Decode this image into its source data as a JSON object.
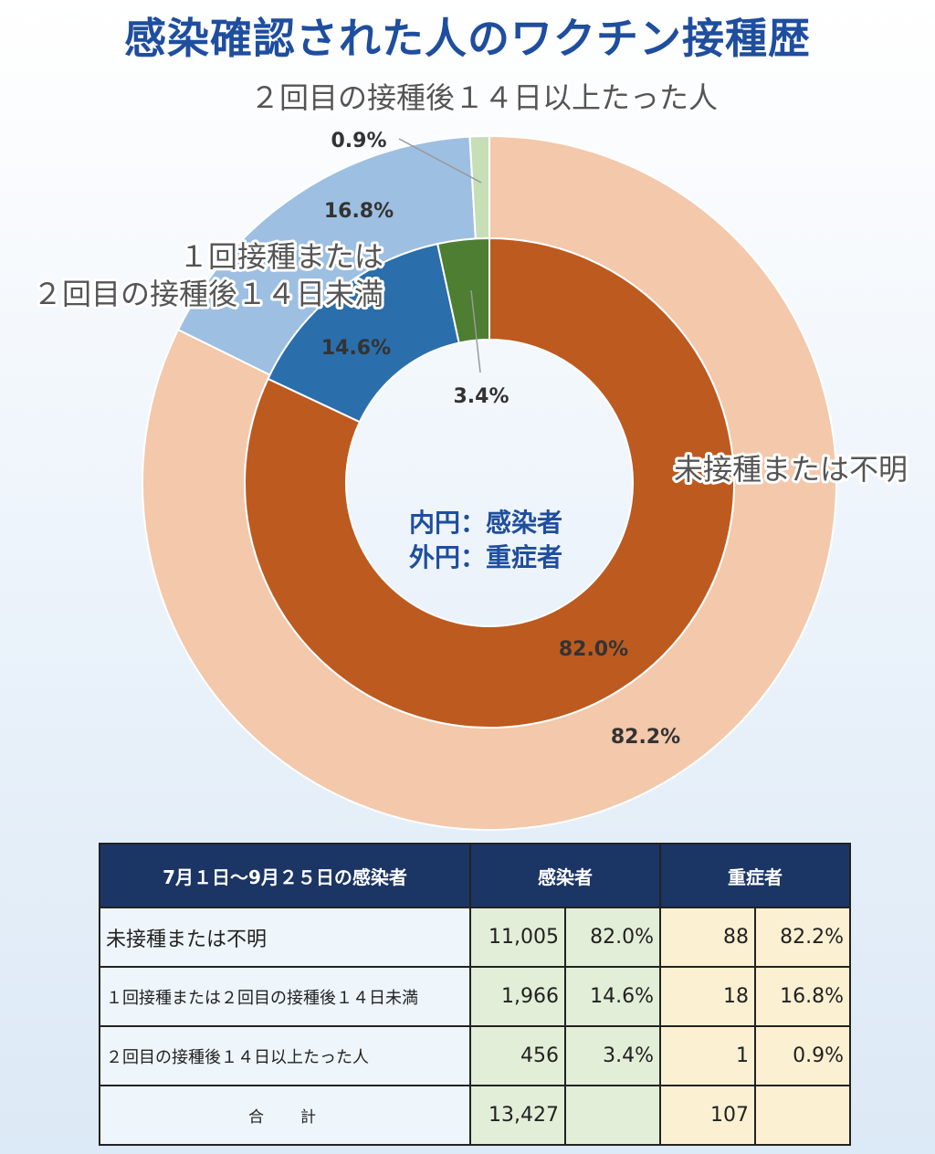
{
  "title": "感染確認された人のワクチン接種歴",
  "chart_data": {
    "type": "donut",
    "title": "感染確認された人のワクチン接種歴",
    "center_labels": [
      "内円：感染者",
      "外円：重症者"
    ],
    "categories": [
      "未接種または不明",
      "１回接種または２回目の接種後１４日未満",
      "２回目の接種後１４日以上たった人"
    ],
    "category_labels": {
      "unvaccinated": "未接種または不明",
      "partial_line1": "１回接種または",
      "partial_line2": "２回目の接種後１４日未満",
      "full": "２回目の接種後１４日以上たった人"
    },
    "series": [
      {
        "name": "感染者",
        "ring": "inner",
        "values": [
          82.0,
          14.6,
          3.4
        ],
        "labels": [
          "82.0%",
          "14.6%",
          "3.4%"
        ],
        "colors": [
          "#bd5a20",
          "#2a6eab",
          "#4d7e32"
        ]
      },
      {
        "name": "重症者",
        "ring": "outer",
        "values": [
          82.2,
          16.8,
          0.9
        ],
        "labels": [
          "82.2%",
          "16.8%",
          "0.9%"
        ],
        "colors": [
          "#f3c8ab",
          "#9dbfe1",
          "#c6dfb6"
        ]
      }
    ]
  },
  "table": {
    "headers": [
      "7月１日～9月２５日の感染者",
      "感染者",
      "重症者"
    ],
    "rows": [
      {
        "category": "未接種または不明",
        "infected": "11,005",
        "infected_pct": "82.0%",
        "severe": "88",
        "severe_pct": "82.2%"
      },
      {
        "category": "１回接種または２回目の接種後１４日未満",
        "infected": "1,966",
        "infected_pct": "14.6%",
        "severe": "18",
        "severe_pct": "16.8%"
      },
      {
        "category": "２回目の接種後１４日以上たった人",
        "infected": "456",
        "infected_pct": "3.4%",
        "severe": "1",
        "severe_pct": "0.9%"
      },
      {
        "category": "合計",
        "infected": "13,427",
        "infected_pct": "",
        "severe": "107",
        "severe_pct": ""
      }
    ]
  },
  "colors": {
    "title": "#1f4e9e",
    "table_header_bg": "#1b3564",
    "infected_cell_bg": "#e2eed7",
    "severe_cell_bg": "#fcf0d2"
  }
}
